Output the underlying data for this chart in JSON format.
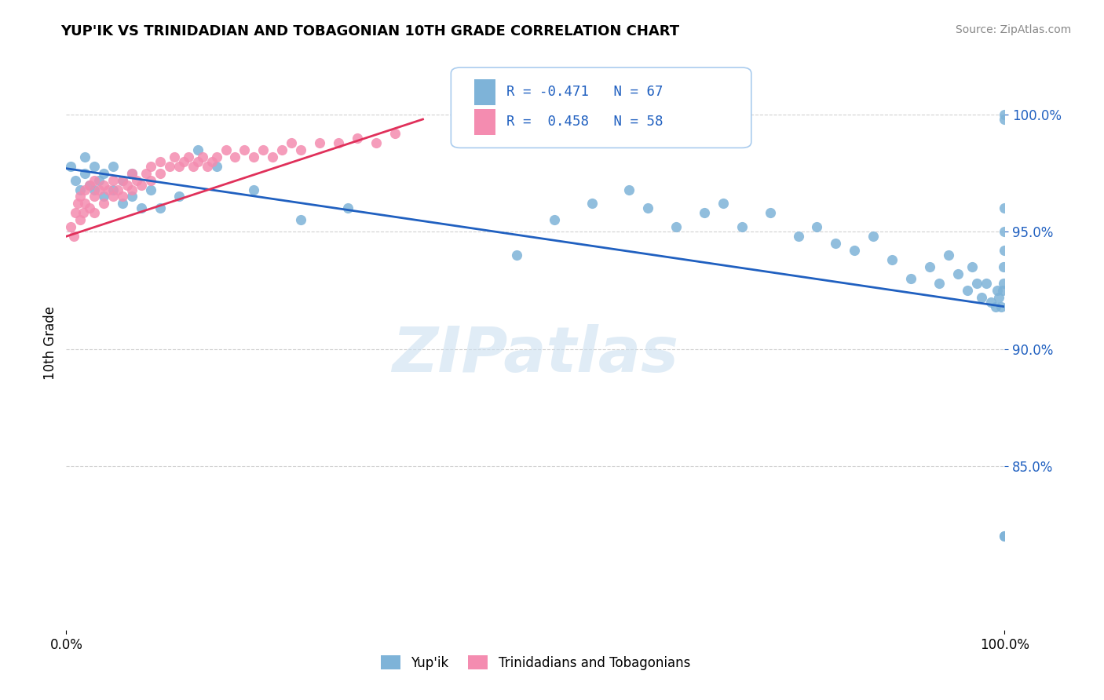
{
  "title": "YUP'IK VS TRINIDADIAN AND TOBAGONIAN 10TH GRADE CORRELATION CHART",
  "source": "Source: ZipAtlas.com",
  "ylabel": "10th Grade",
  "legend_label1": "Yup'ik",
  "legend_label2": "Trinidadians and Tobagonians",
  "blue_color": "#7eb3d8",
  "pink_color": "#f48cb0",
  "trend_blue": "#2060c0",
  "trend_pink": "#e0305a",
  "watermark": "ZIPatlas",
  "blue_scatter_x": [
    0.005,
    0.01,
    0.015,
    0.02,
    0.02,
    0.025,
    0.03,
    0.03,
    0.035,
    0.04,
    0.04,
    0.05,
    0.05,
    0.06,
    0.06,
    0.07,
    0.07,
    0.08,
    0.09,
    0.1,
    0.12,
    0.14,
    0.16,
    0.2,
    0.25,
    0.3,
    0.48,
    0.52,
    0.56,
    0.6,
    0.62,
    0.65,
    0.68,
    0.7,
    0.72,
    0.75,
    0.78,
    0.8,
    0.82,
    0.84,
    0.86,
    0.88,
    0.9,
    0.92,
    0.93,
    0.94,
    0.95,
    0.96,
    0.965,
    0.97,
    0.975,
    0.98,
    0.985,
    0.99,
    0.992,
    0.994,
    0.996,
    0.998,
    0.999,
    0.999,
    1.0,
    1.0,
    1.0,
    1.0,
    1.0,
    1.0,
    1.0
  ],
  "blue_scatter_y": [
    0.978,
    0.972,
    0.968,
    0.975,
    0.982,
    0.97,
    0.968,
    0.978,
    0.972,
    0.965,
    0.975,
    0.968,
    0.978,
    0.962,
    0.972,
    0.965,
    0.975,
    0.96,
    0.968,
    0.96,
    0.965,
    0.985,
    0.978,
    0.968,
    0.955,
    0.96,
    0.94,
    0.955,
    0.962,
    0.968,
    0.96,
    0.952,
    0.958,
    0.962,
    0.952,
    0.958,
    0.948,
    0.952,
    0.945,
    0.942,
    0.948,
    0.938,
    0.93,
    0.935,
    0.928,
    0.94,
    0.932,
    0.925,
    0.935,
    0.928,
    0.922,
    0.928,
    0.92,
    0.918,
    0.925,
    0.922,
    0.918,
    0.925,
    0.928,
    0.935,
    0.942,
    0.95,
    0.96,
    0.998,
    1.0,
    0.82,
    0.82
  ],
  "pink_scatter_x": [
    0.005,
    0.008,
    0.01,
    0.012,
    0.015,
    0.015,
    0.018,
    0.02,
    0.02,
    0.025,
    0.025,
    0.03,
    0.03,
    0.03,
    0.035,
    0.04,
    0.04,
    0.045,
    0.05,
    0.05,
    0.055,
    0.06,
    0.06,
    0.065,
    0.07,
    0.07,
    0.075,
    0.08,
    0.085,
    0.09,
    0.09,
    0.1,
    0.1,
    0.11,
    0.115,
    0.12,
    0.125,
    0.13,
    0.135,
    0.14,
    0.145,
    0.15,
    0.155,
    0.16,
    0.17,
    0.18,
    0.19,
    0.2,
    0.21,
    0.22,
    0.23,
    0.24,
    0.25,
    0.27,
    0.29,
    0.31,
    0.33,
    0.35
  ],
  "pink_scatter_y": [
    0.952,
    0.948,
    0.958,
    0.962,
    0.955,
    0.965,
    0.958,
    0.962,
    0.968,
    0.96,
    0.97,
    0.958,
    0.965,
    0.972,
    0.968,
    0.962,
    0.97,
    0.968,
    0.965,
    0.972,
    0.968,
    0.965,
    0.972,
    0.97,
    0.968,
    0.975,
    0.972,
    0.97,
    0.975,
    0.972,
    0.978,
    0.975,
    0.98,
    0.978,
    0.982,
    0.978,
    0.98,
    0.982,
    0.978,
    0.98,
    0.982,
    0.978,
    0.98,
    0.982,
    0.985,
    0.982,
    0.985,
    0.982,
    0.985,
    0.982,
    0.985,
    0.988,
    0.985,
    0.988,
    0.988,
    0.99,
    0.988,
    0.992
  ],
  "blue_trend_x": [
    0.0,
    1.0
  ],
  "blue_trend_y": [
    0.977,
    0.918
  ],
  "pink_trend_x": [
    0.0,
    0.38
  ],
  "pink_trend_y": [
    0.948,
    0.998
  ],
  "xlim": [
    0.0,
    1.0
  ],
  "ylim": [
    0.78,
    1.025
  ],
  "yticks": [
    0.85,
    0.9,
    0.95,
    1.0
  ],
  "ytick_labels": [
    "85.0%",
    "90.0%",
    "95.0%",
    "100.0%"
  ]
}
